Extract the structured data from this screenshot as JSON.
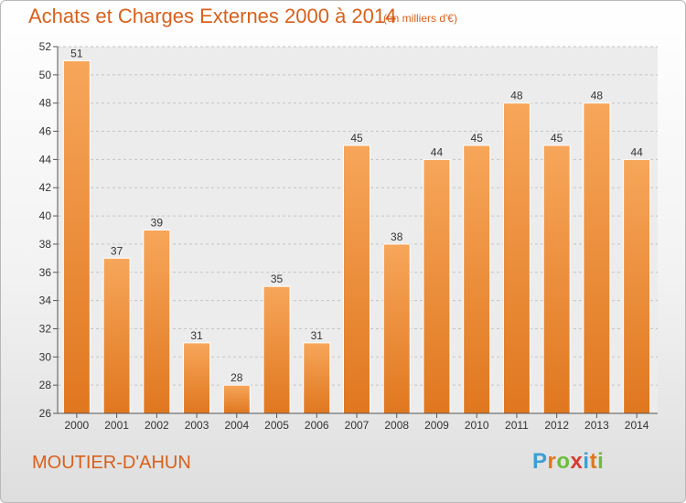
{
  "chart_data": {
    "type": "bar",
    "title": "Achats et Charges Externes 2000 à 2014",
    "subtitle": "(en milliers d'€)",
    "categories": [
      "2000",
      "2001",
      "2002",
      "2003",
      "2004",
      "2005",
      "2006",
      "2007",
      "2008",
      "2009",
      "2010",
      "2011",
      "2012",
      "2013",
      "2014"
    ],
    "values": [
      51,
      37,
      39,
      31,
      28,
      35,
      31,
      45,
      38,
      44,
      45,
      48,
      45,
      48,
      44
    ],
    "xlabel": "",
    "ylabel": "",
    "ylim": [
      26,
      52
    ],
    "yticks": [
      26,
      28,
      30,
      32,
      34,
      36,
      38,
      40,
      42,
      44,
      46,
      48,
      50,
      52
    ],
    "grid": true,
    "bar_color_top": "#f7a65a",
    "bar_color_bottom": "#e0771f"
  },
  "commune": "MOUTIER-D'AHUN",
  "logo": {
    "letters": [
      "P",
      "r",
      "o",
      "x",
      "i",
      "t",
      "i"
    ],
    "colors": [
      "#3a9fd6",
      "#e0771f",
      "#6bbd3a",
      "#d93a2f",
      "#3a9fd6",
      "#e0771f",
      "#6bbd3a"
    ]
  }
}
